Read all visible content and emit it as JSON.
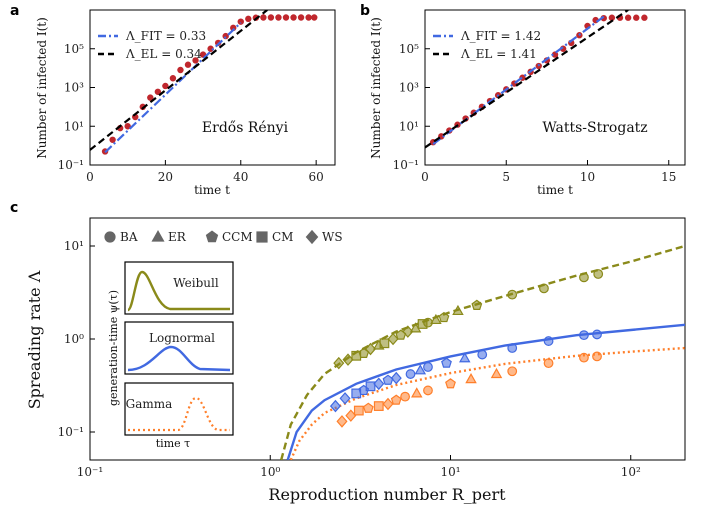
{
  "chart_data": [
    {
      "id": "a",
      "panel_letter": "a",
      "type": "scatter",
      "xscale": "linear",
      "yscale": "log",
      "xlim": [
        0,
        65
      ],
      "ylim": [
        0.1,
        10000000
      ],
      "xticks": [
        0,
        20,
        40,
        60
      ],
      "xtick_labels": [
        "0",
        "20",
        "40",
        "60"
      ],
      "yticks": [
        0.1,
        10,
        1000,
        100000
      ],
      "ytick_labels": [
        "10⁻¹",
        "10¹",
        "10³",
        "10⁵"
      ],
      "xlabel": "time t",
      "ylabel": "Number of infected I(t)",
      "annotation": "Erdős Rényi",
      "legend": [
        {
          "label": "Λ_FIT = 0.33",
          "color": "#4169e1",
          "style": "dashdot"
        },
        {
          "label": "Λ_EL = 0.34",
          "color": "#000000",
          "style": "dashed"
        }
      ],
      "series": [
        {
          "name": "data",
          "color": "#c0272d",
          "x": [
            4,
            6,
            8,
            10,
            12,
            14,
            16,
            18,
            20,
            22,
            24,
            26,
            28,
            30,
            32,
            34,
            36,
            38,
            40,
            42,
            44,
            46,
            48,
            50,
            52,
            54,
            56,
            58,
            59.5
          ],
          "y": [
            0.5,
            2,
            8,
            10,
            30,
            100,
            300,
            600,
            1200,
            3000,
            8000,
            15000,
            25000,
            50000,
            100000,
            200000,
            450000,
            1200000,
            2500000,
            3500000,
            4000000,
            4100000,
            4100000,
            4100000,
            4100000,
            4100000,
            4100000,
            4100000,
            4100000
          ]
        },
        {
          "name": "Λ_FIT fit",
          "color": "#4169e1",
          "style": "dashdot",
          "x": [
            4,
            40
          ],
          "y": [
            0.45,
            2200000
          ]
        },
        {
          "name": "Λ_EL line",
          "color": "#000000",
          "style": "dashed",
          "x": [
            0,
            47
          ],
          "y": [
            0.6,
            10000000
          ]
        }
      ]
    },
    {
      "id": "b",
      "panel_letter": "b",
      "type": "scatter",
      "xscale": "linear",
      "yscale": "log",
      "xlim": [
        0,
        16
      ],
      "ylim": [
        0.1,
        10000000
      ],
      "xticks": [
        0,
        5,
        10,
        15
      ],
      "xtick_labels": [
        "0",
        "5",
        "10",
        "15"
      ],
      "yticks": [
        0.1,
        10,
        1000,
        100000
      ],
      "ytick_labels": [
        "10⁻¹",
        "10¹",
        "10³",
        "10⁵"
      ],
      "xlabel": "time t",
      "ylabel": "Number of infected I(t)",
      "annotation": "Watts-Strogatz",
      "legend": [
        {
          "label": "Λ_FIT = 1.42",
          "color": "#4169e1",
          "style": "dashdot"
        },
        {
          "label": "Λ_EL = 1.41",
          "color": "#000000",
          "style": "dashed"
        }
      ],
      "series": [
        {
          "name": "data",
          "color": "#c0272d",
          "x": [
            0.5,
            1,
            1.5,
            2,
            2.5,
            3,
            3.5,
            4,
            4.5,
            5,
            5.5,
            6,
            6.5,
            7,
            7.5,
            8,
            8.5,
            9,
            9.5,
            10,
            10.5,
            11,
            11.5,
            12,
            12.5,
            13,
            13.5
          ],
          "y": [
            1.5,
            3,
            6,
            12,
            25,
            50,
            100,
            200,
            400,
            800,
            1600,
            3200,
            6400,
            12800,
            25000,
            50000,
            100000,
            200000,
            500000,
            1500000,
            3000000,
            3800000,
            4000000,
            4000000,
            4000000,
            4000000,
            4000000
          ]
        },
        {
          "name": "Λ_FIT fit",
          "color": "#4169e1",
          "style": "dashdot",
          "x": [
            0.5,
            11
          ],
          "y": [
            1.2,
            4600000
          ]
        },
        {
          "name": "Λ_EL line",
          "color": "#000000",
          "style": "dashed",
          "x": [
            0,
            12.5
          ],
          "y": [
            0.8,
            10000000
          ]
        }
      ]
    },
    {
      "id": "c",
      "panel_letter": "c",
      "type": "scatter",
      "xscale": "log",
      "yscale": "log",
      "xlim": [
        0.1,
        200
      ],
      "ylim": [
        0.05,
        20
      ],
      "xticks": [
        0.1,
        1,
        10,
        100
      ],
      "xtick_labels": [
        "10⁻¹",
        "10⁰",
        "10¹",
        "10²"
      ],
      "yticks": [
        0.1,
        1,
        10
      ],
      "ytick_labels": [
        "10⁻¹",
        "10⁰",
        "10¹"
      ],
      "xlabel": "Reproduction number R_pert",
      "ylabel": "Spreading rate Λ",
      "legend": [
        {
          "label": "BA",
          "marker": "circle"
        },
        {
          "label": "ER",
          "marker": "triangle"
        },
        {
          "label": "CCM",
          "marker": "pentagon"
        },
        {
          "label": "CM",
          "marker": "square"
        },
        {
          "label": "WS",
          "marker": "diamond"
        }
      ],
      "insets": [
        {
          "label": "Weibull",
          "color": "#8a8a1a"
        },
        {
          "label": "Lognormal",
          "color": "#4169e1"
        },
        {
          "label": "Gamma",
          "color": "#ff7f2a"
        }
      ],
      "inset_ylabel": "generation-time ψ(τ)",
      "inset_xlabel": "time τ",
      "series": [
        {
          "name": "Weibull theory",
          "color": "#8a8a1a",
          "style": "dashed",
          "x": [
            1.15,
            1.3,
            1.6,
            2,
            3,
            5,
            10,
            20,
            50,
            100,
            200
          ],
          "y": [
            0.05,
            0.12,
            0.25,
            0.42,
            0.72,
            1.2,
            1.95,
            2.9,
            4.8,
            6.8,
            10
          ]
        },
        {
          "name": "Lognormal theory",
          "color": "#4169e1",
          "style": "solid",
          "x": [
            1.25,
            1.4,
            1.7,
            2,
            3,
            5,
            10,
            20,
            50,
            100,
            200
          ],
          "y": [
            0.05,
            0.1,
            0.17,
            0.22,
            0.33,
            0.47,
            0.65,
            0.85,
            1.1,
            1.25,
            1.42
          ]
        },
        {
          "name": "Gamma theory",
          "color": "#ff7f2a",
          "style": "dotted",
          "x": [
            1.3,
            1.45,
            1.7,
            2,
            3,
            5,
            10,
            20,
            50,
            100,
            200
          ],
          "y": [
            0.05,
            0.08,
            0.12,
            0.16,
            0.23,
            0.32,
            0.43,
            0.54,
            0.66,
            0.73,
            0.8
          ]
        },
        {
          "name": "Weibull data",
          "color": "#8a8a1a",
          "points": [
            [
              2.4,
              0.55,
              "diamond"
            ],
            [
              2.7,
              0.6,
              "diamond"
            ],
            [
              3.0,
              0.66,
              "square"
            ],
            [
              3.3,
              0.7,
              "pentagon"
            ],
            [
              3.6,
              0.78,
              "diamond"
            ],
            [
              4.0,
              0.85,
              "triangle"
            ],
            [
              4.3,
              0.9,
              "square"
            ],
            [
              4.8,
              1.0,
              "diamond"
            ],
            [
              5.3,
              1.1,
              "pentagon"
            ],
            [
              5.8,
              1.2,
              "diamond"
            ],
            [
              6.4,
              1.3,
              "triangle"
            ],
            [
              7.0,
              1.45,
              "square"
            ],
            [
              7.5,
              1.5,
              "circle"
            ],
            [
              8.3,
              1.6,
              "triangle"
            ],
            [
              9.2,
              1.7,
              "pentagon"
            ],
            [
              11,
              2.0,
              "triangle"
            ],
            [
              14,
              2.3,
              "pentagon"
            ],
            [
              22,
              3.0,
              "circle"
            ],
            [
              33,
              3.5,
              "circle"
            ],
            [
              55,
              4.6,
              "circle"
            ],
            [
              66,
              5.0,
              "circle"
            ]
          ]
        },
        {
          "name": "Lognormal data",
          "color": "#4169e1",
          "points": [
            [
              2.3,
              0.19,
              "diamond"
            ],
            [
              2.6,
              0.23,
              "diamond"
            ],
            [
              3.0,
              0.26,
              "square"
            ],
            [
              3.3,
              0.28,
              "pentagon"
            ],
            [
              3.6,
              0.31,
              "square"
            ],
            [
              4.0,
              0.33,
              "diamond"
            ],
            [
              4.5,
              0.36,
              "pentagon"
            ],
            [
              5.0,
              0.38,
              "diamond"
            ],
            [
              6.0,
              0.42,
              "circle"
            ],
            [
              6.8,
              0.46,
              "triangle"
            ],
            [
              7.5,
              0.5,
              "circle"
            ],
            [
              9.5,
              0.55,
              "pentagon"
            ],
            [
              12,
              0.62,
              "triangle"
            ],
            [
              15,
              0.68,
              "circle"
            ],
            [
              22,
              0.8,
              "circle"
            ],
            [
              35,
              0.95,
              "circle"
            ],
            [
              55,
              1.1,
              "circle"
            ],
            [
              65,
              1.12,
              "circle"
            ]
          ]
        },
        {
          "name": "Gamma data",
          "color": "#ff7f2a",
          "points": [
            [
              2.5,
              0.13,
              "diamond"
            ],
            [
              2.8,
              0.15,
              "diamond"
            ],
            [
              3.1,
              0.17,
              "square"
            ],
            [
              3.5,
              0.18,
              "pentagon"
            ],
            [
              4.0,
              0.19,
              "square"
            ],
            [
              4.5,
              0.2,
              "diamond"
            ],
            [
              5.0,
              0.22,
              "pentagon"
            ],
            [
              5.6,
              0.24,
              "circle"
            ],
            [
              6.5,
              0.26,
              "triangle"
            ],
            [
              7.5,
              0.28,
              "circle"
            ],
            [
              10,
              0.33,
              "pentagon"
            ],
            [
              13,
              0.37,
              "triangle"
            ],
            [
              18,
              0.42,
              "triangle"
            ],
            [
              22,
              0.45,
              "circle"
            ],
            [
              35,
              0.55,
              "circle"
            ],
            [
              55,
              0.63,
              "circle"
            ],
            [
              65,
              0.65,
              "circle"
            ]
          ]
        }
      ]
    }
  ]
}
